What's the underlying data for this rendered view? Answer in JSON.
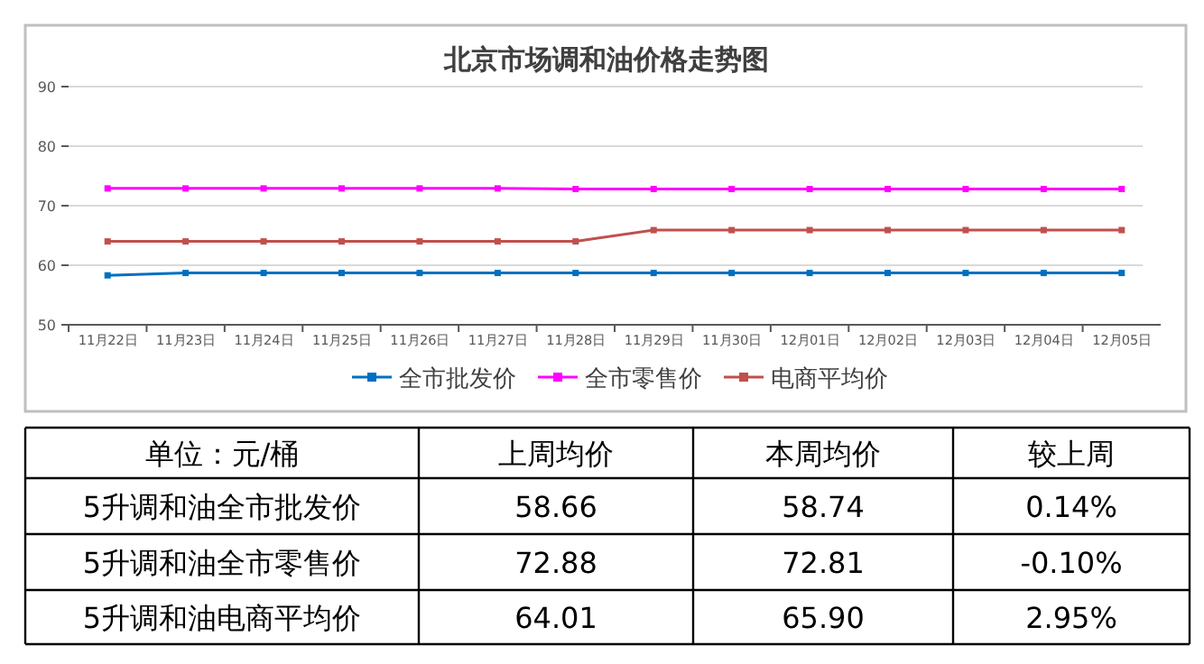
{
  "chart_data": {
    "type": "line",
    "title": "北京市场调和油价格走势图",
    "categories": [
      "11月22日",
      "11月23日",
      "11月24日",
      "11月25日",
      "11月26日",
      "11月27日",
      "11月28日",
      "11月29日",
      "11月30日",
      "12月01日",
      "12月02日",
      "12月03日",
      "12月04日",
      "12月05日"
    ],
    "series": [
      {
        "name": "全市批发价",
        "color": "#0070c0",
        "values": [
          58.3,
          58.7,
          58.7,
          58.7,
          58.7,
          58.7,
          58.7,
          58.7,
          58.7,
          58.7,
          58.7,
          58.7,
          58.7,
          58.7
        ]
      },
      {
        "name": "全市零售价",
        "color": "#ff00ff",
        "values": [
          72.9,
          72.9,
          72.9,
          72.9,
          72.9,
          72.9,
          72.8,
          72.8,
          72.8,
          72.8,
          72.8,
          72.8,
          72.8,
          72.8
        ]
      },
      {
        "name": "电商平均价",
        "color": "#c0504d",
        "values": [
          64.0,
          64.0,
          64.0,
          64.0,
          64.0,
          64.0,
          64.0,
          65.9,
          65.9,
          65.9,
          65.9,
          65.9,
          65.9,
          65.9
        ]
      }
    ],
    "ylim": [
      50,
      90
    ],
    "yticks": [
      50,
      60,
      70,
      80,
      90
    ],
    "grid": "y",
    "legend": "bottom",
    "marker": "square",
    "line_style": "solid",
    "annotations": [
      "单位：元/桶",
      "上周均价",
      "本周均价",
      "较上周",
      "5升调和油全市批发价",
      "58.66",
      "58.74",
      "0.14%",
      "5升调和油全市零售价",
      "72.88",
      "72.81",
      "-0.10%",
      "5升调和油电商平均价",
      "64.01",
      "65.90",
      "2.95%"
    ]
  }
}
